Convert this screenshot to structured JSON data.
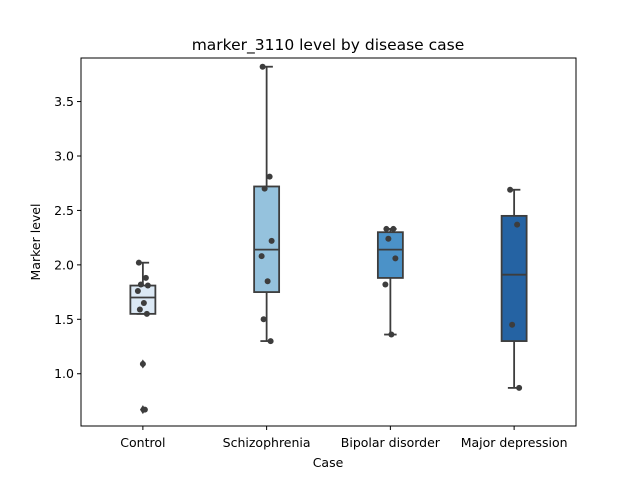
{
  "chart_data": {
    "type": "box",
    "title": "marker_3110 level by disease case",
    "xlabel": "Case",
    "ylabel": "Marker level",
    "ylim": [
      0.52,
      3.9
    ],
    "yticks": [
      "1.0",
      "1.5",
      "2.0",
      "2.5",
      "3.0",
      "3.5"
    ],
    "grid": false,
    "categories": [
      "Control",
      "Schizophrenia",
      "Bipolar disorder",
      "Major depression"
    ],
    "boxes": [
      {
        "category": "Control",
        "q1": 1.55,
        "median": 1.7,
        "q3": 1.81,
        "whisker_low": 1.55,
        "whisker_high": 2.02,
        "outliers": [
          1.09,
          0.67
        ],
        "color": "#dce9f5"
      },
      {
        "category": "Schizophrenia",
        "q1": 1.75,
        "median": 2.14,
        "q3": 2.72,
        "whisker_low": 1.3,
        "whisker_high": 3.82,
        "outliers": [],
        "color": "#95c2dd"
      },
      {
        "category": "Bipolar disorder",
        "q1": 1.88,
        "median": 2.14,
        "q3": 2.3,
        "whisker_low": 1.36,
        "whisker_high": 2.33,
        "outliers": [],
        "color": "#4b92c8"
      },
      {
        "category": "Major depression",
        "q1": 1.3,
        "median": 1.91,
        "q3": 2.45,
        "whisker_low": 0.87,
        "whisker_high": 2.69,
        "outliers": [],
        "color": "#2563a3"
      }
    ],
    "points": [
      {
        "category": "Control",
        "values": [
          2.02,
          1.88,
          1.82,
          1.81,
          1.76,
          1.65,
          1.59,
          1.55,
          1.09,
          0.67
        ]
      },
      {
        "category": "Schizophrenia",
        "values": [
          3.82,
          2.81,
          2.7,
          2.22,
          2.08,
          1.85,
          1.5,
          1.3
        ]
      },
      {
        "category": "Bipolar disorder",
        "values": [
          2.33,
          2.33,
          2.24,
          2.06,
          1.82,
          1.36
        ]
      },
      {
        "category": "Major depression",
        "values": [
          2.69,
          2.37,
          1.45,
          0.87
        ]
      }
    ]
  }
}
